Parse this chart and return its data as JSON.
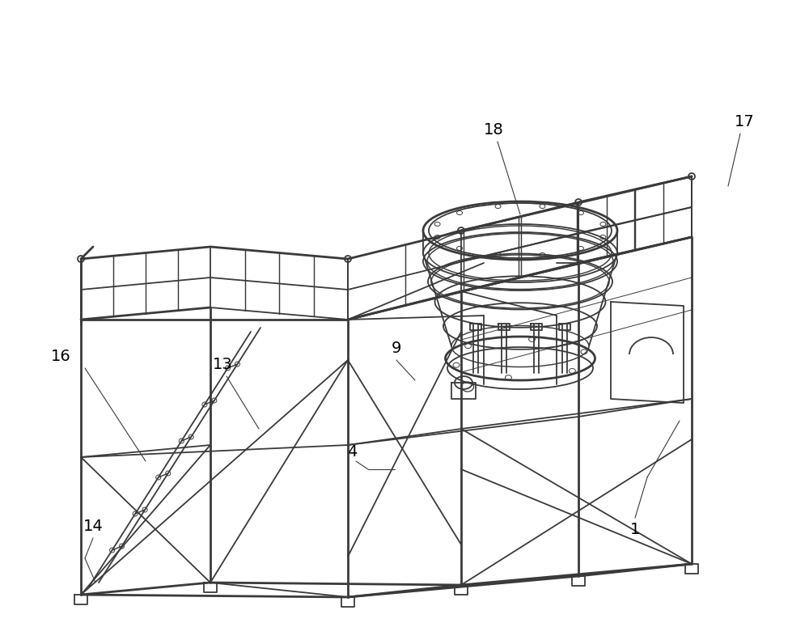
{
  "bg_color": "#ffffff",
  "lc": "#3a3a3a",
  "lw": 1.3,
  "tlw": 2.0,
  "fs": 14
}
